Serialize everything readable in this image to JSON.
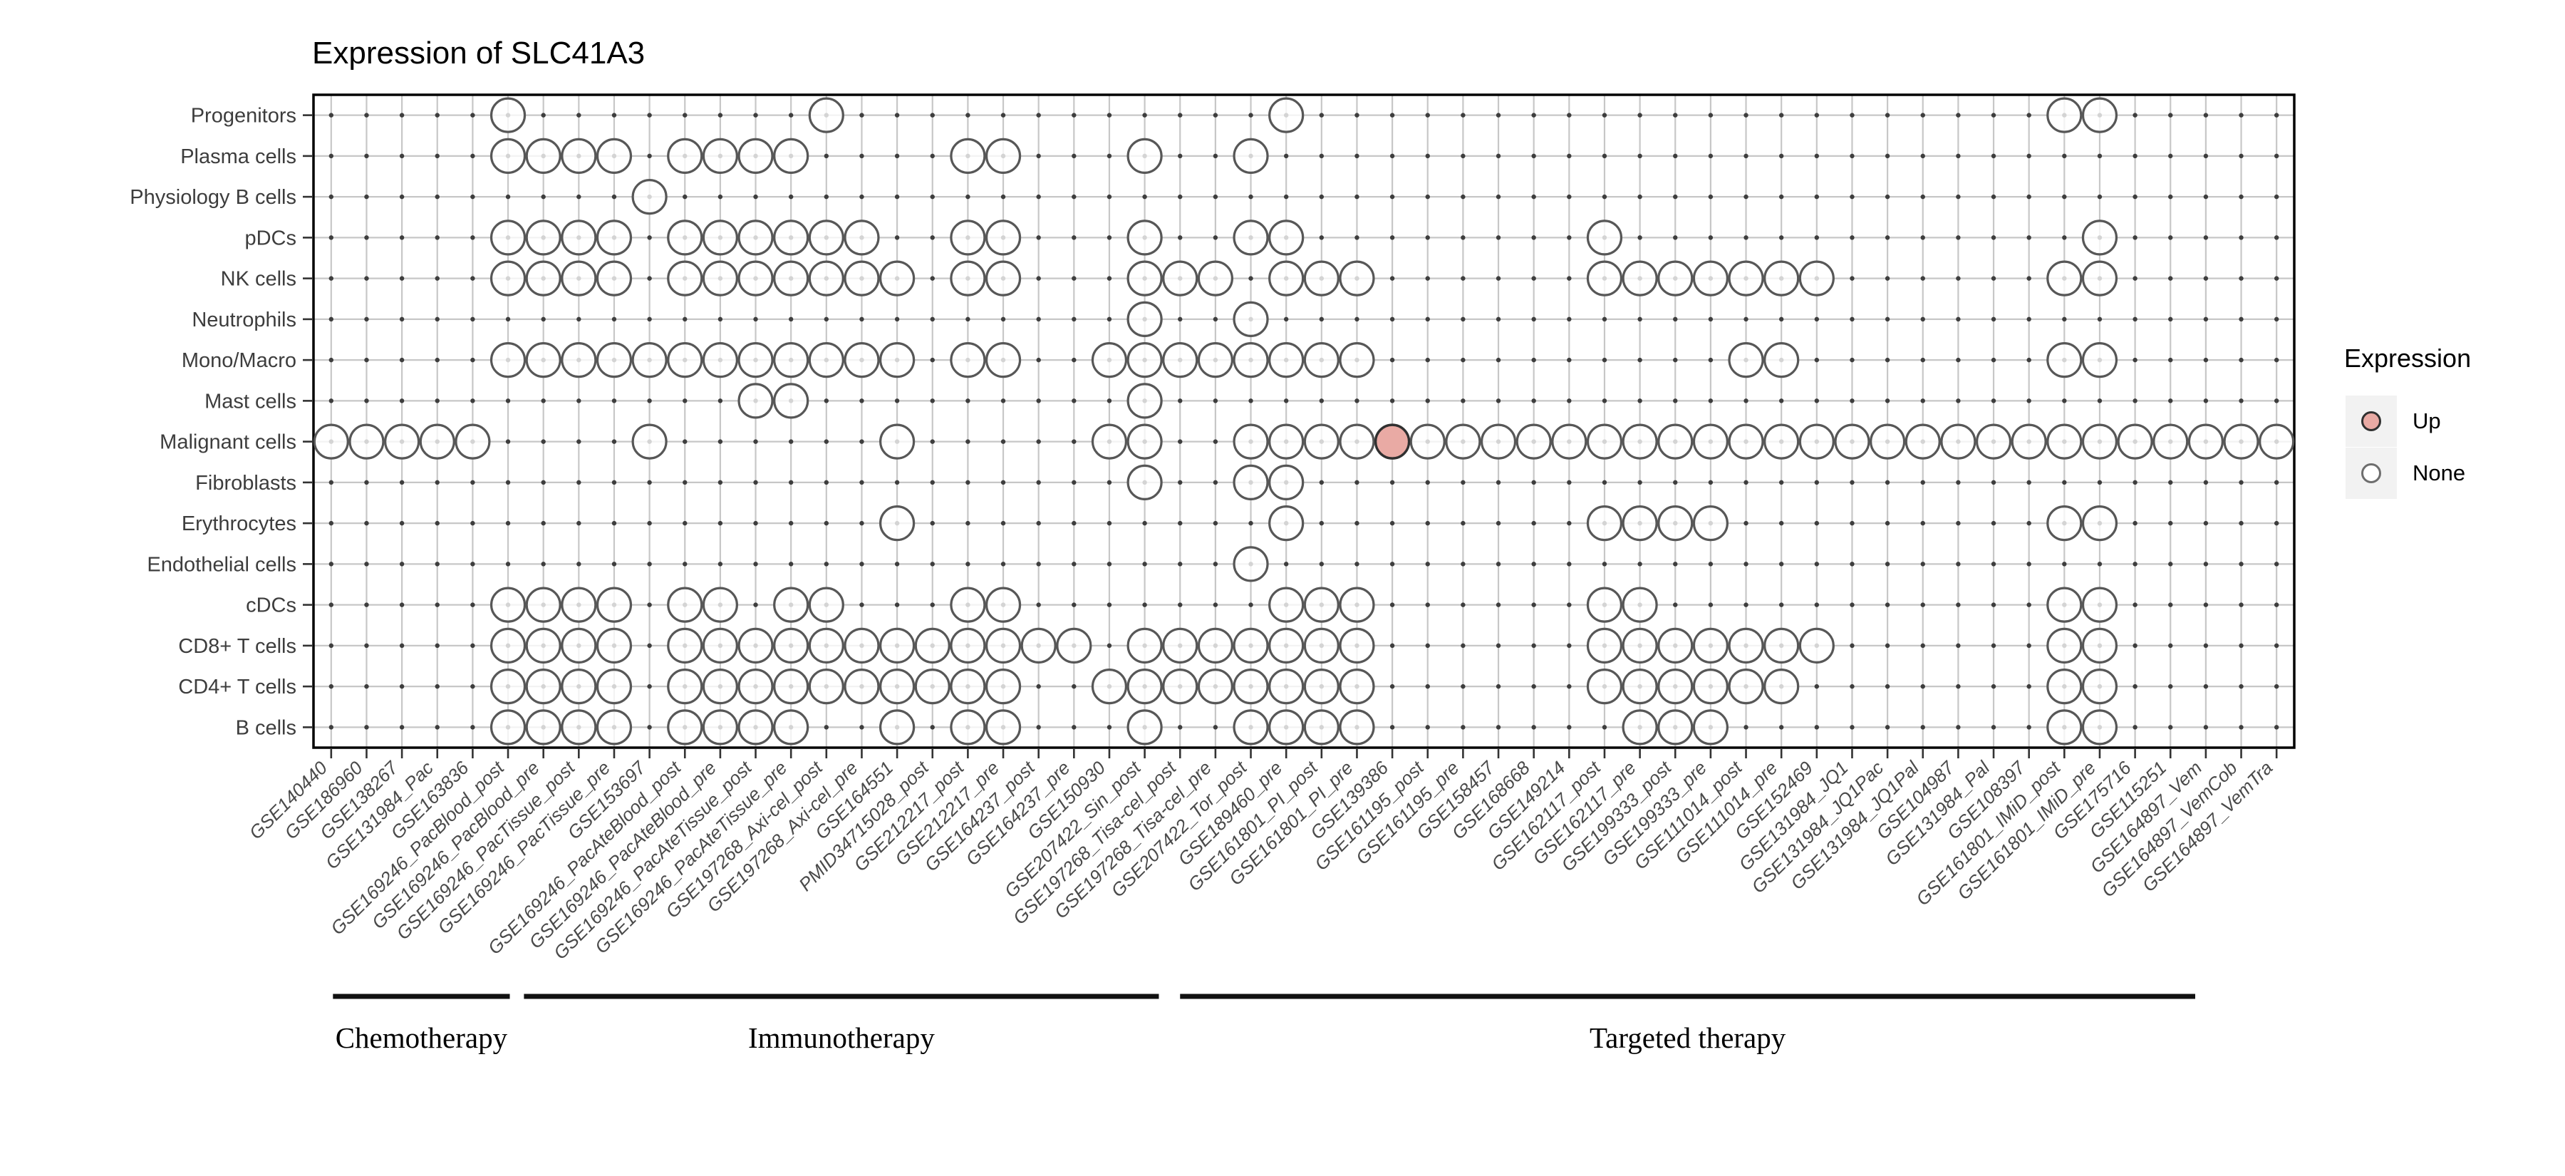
{
  "title": "Expression of SLC41A3",
  "legend": {
    "title": "Expression",
    "items": [
      {
        "label": "Up",
        "fill": "#E9AAA4",
        "stroke": "#303030"
      },
      {
        "label": "None",
        "fill": "#FFFFFF",
        "stroke": "#6E6E6E"
      }
    ]
  },
  "groups": [
    {
      "label": "Chemotherapy",
      "line_from_col": 0.55,
      "line_to_col": 5.55
    },
    {
      "label": "Immunotherapy",
      "line_from_col": 5.95,
      "line_to_col": 23.9
    },
    {
      "label": "Targeted therapy",
      "line_from_col": 24.5,
      "line_to_col": 53.2
    }
  ],
  "chart_data": {
    "type": "scatter",
    "title": "Expression of SLC41A3",
    "x_categories": [
      "GSE140440",
      "GSE186960",
      "GSE138267",
      "GSE131984_Pac",
      "GSE163836",
      "GSE169246_PacBlood_post",
      "GSE169246_PacBlood_pre",
      "GSE169246_PacTissue_post",
      "GSE169246_PacTissue_pre",
      "GSE153697",
      "GSE169246_PacAteBlood_post",
      "GSE169246_PacAteBlood_pre",
      "GSE169246_PacAteTissue_post",
      "GSE169246_PacAteTissue_pre",
      "GSE197268_Axi-cel_post",
      "GSE197268_Axi-cel_pre",
      "GSE164551",
      "PMID34715028_post",
      "GSE212217_post",
      "GSE212217_pre",
      "GSE164237_post",
      "GSE164237_pre",
      "GSE150930",
      "GSE207422_Sin_post",
      "GSE197268_Tisa-cel_post",
      "GSE197268_Tisa-cel_pre",
      "GSE207422_Tor_post",
      "GSE189460_pre",
      "GSE161801_PI_post",
      "GSE161801_PI_pre",
      "GSE139386",
      "GSE161195_post",
      "GSE161195_pre",
      "GSE158457",
      "GSE168668",
      "GSE149214",
      "GSE162117_post",
      "GSE162117_pre",
      "GSE199333_post",
      "GSE199333_pre",
      "GSE111014_post",
      "GSE111014_pre",
      "GSE152469",
      "GSE131984_JQ1",
      "GSE131984_JQ1Pac",
      "GSE131984_JQ1Pal",
      "GSE104987",
      "GSE131984_Pal",
      "GSE108397",
      "GSE161801_IMiD_post",
      "GSE161801_IMiD_pre",
      "GSE175716",
      "GSE115251",
      "GSE164897_Vem",
      "GSE164897_VemCob",
      "GSE164897_VemTra"
    ],
    "y_categories": [
      "Progenitors",
      "Plasma cells",
      "Physiology B cells",
      "pDCs",
      "NK cells",
      "Neutrophils",
      "Mono/Macro",
      "Mast cells",
      "Malignant cells",
      "Fibroblasts",
      "Erythrocytes",
      "Endothelial cells",
      "cDCs",
      "CD8+ T cells",
      "CD4+ T cells",
      "B cells"
    ],
    "points_none": {
      "Progenitors": [
        6,
        15,
        28,
        50,
        51
      ],
      "Plasma cells": [
        6,
        7,
        8,
        9,
        11,
        12,
        13,
        14,
        19,
        20,
        24,
        27
      ],
      "Physiology B cells": [
        10
      ],
      "pDCs": [
        6,
        7,
        8,
        9,
        11,
        12,
        13,
        14,
        15,
        16,
        19,
        20,
        24,
        27,
        28,
        37,
        51
      ],
      "NK cells": [
        6,
        7,
        8,
        9,
        11,
        12,
        13,
        14,
        15,
        16,
        17,
        19,
        20,
        24,
        25,
        26,
        28,
        29,
        30,
        37,
        38,
        39,
        40,
        41,
        42,
        43,
        50,
        51
      ],
      "Neutrophils": [
        24,
        27
      ],
      "Mono/Macro": [
        6,
        7,
        8,
        9,
        10,
        11,
        12,
        13,
        14,
        15,
        16,
        17,
        19,
        20,
        23,
        24,
        25,
        26,
        27,
        28,
        29,
        30,
        41,
        42,
        50,
        51
      ],
      "Mast cells": [
        13,
        14,
        24
      ],
      "Malignant cells": [
        1,
        2,
        3,
        4,
        5,
        10,
        17,
        23,
        24,
        27,
        28,
        29,
        30,
        32,
        33,
        34,
        35,
        36,
        37,
        38,
        39,
        40,
        41,
        42,
        43,
        44,
        45,
        46,
        47,
        48,
        49,
        50,
        51,
        52,
        53,
        54,
        55,
        56
      ],
      "Fibroblasts": [
        24,
        27,
        28
      ],
      "Erythrocytes": [
        17,
        28,
        37,
        38,
        39,
        40,
        50,
        51
      ],
      "Endothelial cells": [
        27
      ],
      "cDCs": [
        6,
        7,
        8,
        9,
        11,
        12,
        14,
        15,
        19,
        20,
        28,
        29,
        30,
        37,
        38,
        50,
        51
      ],
      "CD8+ T cells": [
        6,
        7,
        8,
        9,
        11,
        12,
        13,
        14,
        15,
        16,
        17,
        18,
        19,
        20,
        21,
        22,
        24,
        25,
        26,
        27,
        28,
        29,
        30,
        37,
        38,
        39,
        40,
        41,
        42,
        43,
        50,
        51
      ],
      "CD4+ T cells": [
        6,
        7,
        8,
        9,
        11,
        12,
        13,
        14,
        15,
        16,
        17,
        18,
        19,
        20,
        23,
        24,
        25,
        26,
        27,
        28,
        29,
        30,
        37,
        38,
        39,
        40,
        41,
        42,
        50,
        51
      ],
      "B cells": [
        6,
        7,
        8,
        9,
        11,
        12,
        13,
        14,
        17,
        19,
        20,
        24,
        27,
        28,
        29,
        30,
        38,
        39,
        40,
        50,
        51
      ]
    },
    "points_up": [
      {
        "row": "Malignant cells",
        "col": 31
      }
    ],
    "colors": {
      "up_fill": "#E9AAA4",
      "up_stroke": "#303030",
      "none_fill": "rgba(255,255,255,0.78)",
      "none_stroke": "#575757",
      "grid": "#C7C7C7",
      "grid_dot": "#3E3E3E",
      "border": "#000000",
      "axis_tick": "#333333",
      "x_label": "#4A4A4A",
      "y_label": "#3D3D3D"
    },
    "layout_hints": {
      "grid": true,
      "legend_position": "right",
      "x_label_angle": 45
    }
  }
}
